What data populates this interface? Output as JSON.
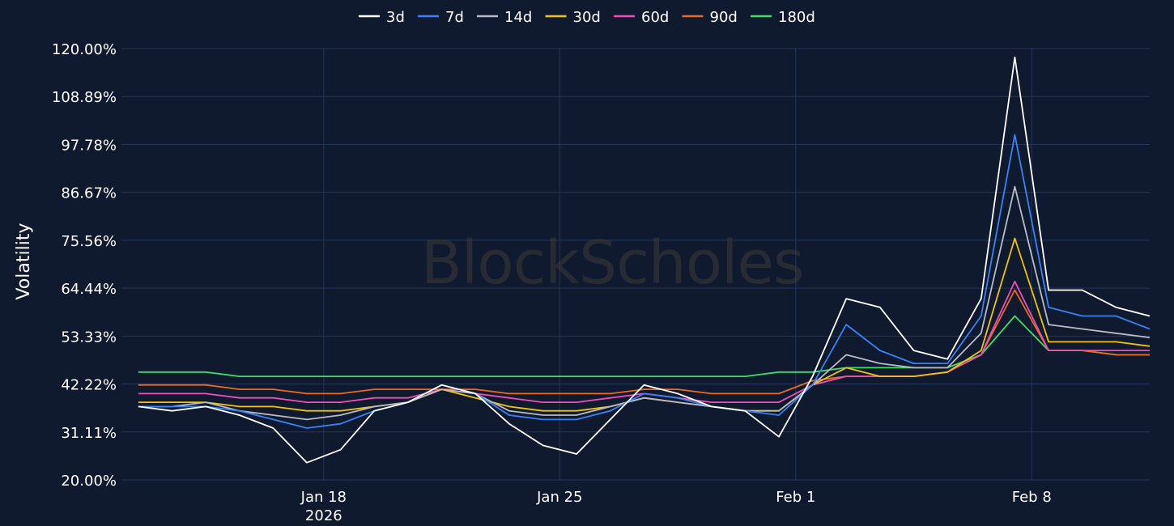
{
  "watermark": "BlockScholes",
  "colors": {
    "background": "#0f1a2e",
    "grid": "#25365a",
    "text": "#ffffff"
  },
  "chart_data": {
    "type": "line",
    "title": "",
    "xlabel": "",
    "ylabel": "Volatility",
    "x_range": [
      "2026-01-12T00:00",
      "2026-02-11T12:00"
    ],
    "ylim": [
      20,
      120
    ],
    "y_ticks": [
      "20.00%",
      "31.11%",
      "42.22%",
      "53.33%",
      "64.44%",
      "75.56%",
      "86.67%",
      "97.78%",
      "108.89%",
      "120.00%"
    ],
    "x_ticks": [
      {
        "date": "2026-01-18",
        "label": "Jan 18",
        "sublabel": "2026"
      },
      {
        "date": "2026-01-25",
        "label": "Jan 25",
        "sublabel": ""
      },
      {
        "date": "2026-02-01",
        "label": "Feb 1",
        "sublabel": ""
      },
      {
        "date": "2026-02-08",
        "label": "Feb 8",
        "sublabel": ""
      }
    ],
    "grid": true,
    "legend_position": "top-center",
    "x": [
      "2026-01-12",
      "2026-01-13",
      "2026-01-14",
      "2026-01-15",
      "2026-01-16",
      "2026-01-17",
      "2026-01-18",
      "2026-01-19",
      "2026-01-20",
      "2026-01-21",
      "2026-01-22",
      "2026-01-23",
      "2026-01-24",
      "2026-01-25",
      "2026-01-26",
      "2026-01-27",
      "2026-01-28",
      "2026-01-29",
      "2026-01-30",
      "2026-01-31",
      "2026-02-01",
      "2026-02-02",
      "2026-02-03",
      "2026-02-04",
      "2026-02-05",
      "2026-02-06",
      "2026-02-07",
      "2026-02-08",
      "2026-02-09",
      "2026-02-10",
      "2026-02-11"
    ],
    "series": [
      {
        "name": "3d",
        "color": "#ffffff",
        "values": [
          37,
          36,
          37,
          35,
          32,
          24,
          27,
          36,
          38,
          42,
          40,
          33,
          28,
          26,
          34,
          42,
          40,
          37,
          36,
          30,
          44,
          62,
          60,
          50,
          48,
          62,
          118,
          64,
          64,
          60,
          58
        ]
      },
      {
        "name": "7d",
        "color": "#3b82f6",
        "values": [
          37,
          37,
          37,
          36,
          34,
          32,
          33,
          36,
          38,
          42,
          40,
          35,
          34,
          34,
          36,
          40,
          39,
          37,
          36,
          35,
          42,
          56,
          50,
          47,
          47,
          58,
          100,
          60,
          58,
          58,
          55
        ]
      },
      {
        "name": "14d",
        "color": "#b8bcc6",
        "values": [
          37,
          37,
          38,
          36,
          35,
          34,
          35,
          37,
          38,
          41,
          40,
          36,
          35,
          35,
          37,
          39,
          38,
          37,
          36,
          36,
          42,
          49,
          47,
          46,
          46,
          54,
          88,
          56,
          55,
          54,
          53
        ]
      },
      {
        "name": "30d",
        "color": "#f2c20f",
        "values": [
          38,
          38,
          38,
          37,
          37,
          36,
          36,
          37,
          38,
          41,
          39,
          37,
          36,
          36,
          37,
          39,
          38,
          37,
          36,
          36,
          42,
          46,
          44,
          44,
          45,
          50,
          76,
          52,
          52,
          52,
          51
        ]
      },
      {
        "name": "60d",
        "color": "#ec4fb7",
        "values": [
          40,
          40,
          40,
          39,
          39,
          38,
          38,
          39,
          39,
          41,
          40,
          39,
          38,
          38,
          39,
          40,
          39,
          38,
          38,
          38,
          42,
          44,
          44,
          44,
          45,
          49,
          66,
          50,
          50,
          50,
          50
        ]
      },
      {
        "name": "90d",
        "color": "#ea6a20",
        "values": [
          42,
          42,
          42,
          41,
          41,
          40,
          40,
          41,
          41,
          41,
          41,
          40,
          40,
          40,
          40,
          41,
          41,
          40,
          40,
          40,
          43,
          44,
          44,
          44,
          45,
          49,
          64,
          50,
          50,
          49,
          49
        ]
      },
      {
        "name": "180d",
        "color": "#3fdc68",
        "values": [
          45,
          45,
          45,
          44,
          44,
          44,
          44,
          44,
          44,
          44,
          44,
          44,
          44,
          44,
          44,
          44,
          44,
          44,
          44,
          45,
          45,
          46,
          46,
          46,
          46,
          49,
          58,
          50,
          50,
          49,
          49
        ]
      }
    ]
  }
}
